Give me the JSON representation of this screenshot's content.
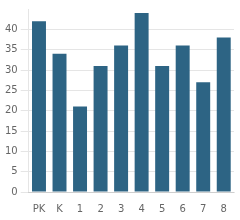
{
  "chart_data": {
    "type": "bar",
    "categories": [
      "PK",
      "K",
      "1",
      "2",
      "3",
      "4",
      "5",
      "6",
      "7",
      "8"
    ],
    "values": [
      42,
      34,
      21,
      31,
      36,
      44,
      31,
      36,
      27,
      38
    ],
    "color": "#2d6484",
    "ylim": [
      0,
      45
    ],
    "yticks": [
      0,
      5,
      10,
      15,
      20,
      25,
      30,
      35,
      40
    ],
    "grid": true
  }
}
